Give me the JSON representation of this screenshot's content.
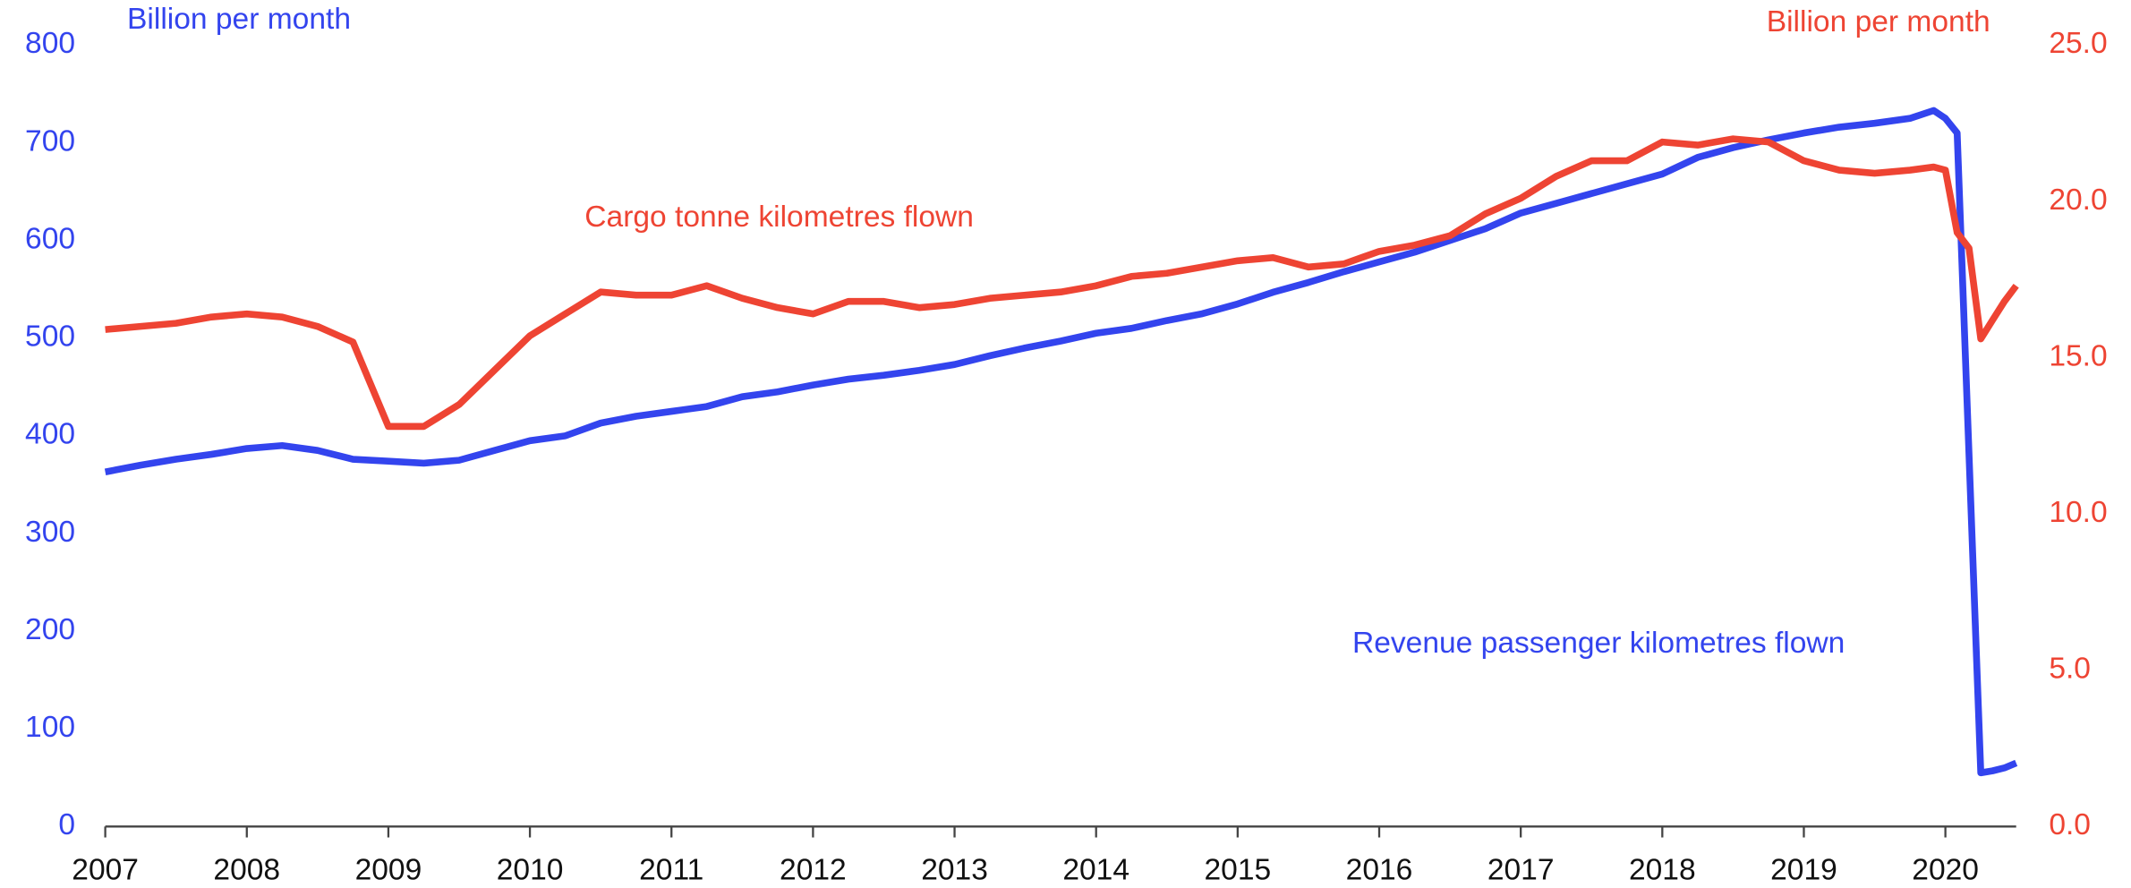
{
  "chart_data": {
    "type": "line",
    "y_axis_label": "Billion per month",
    "y2_axis_label": "Billion per month",
    "x": [
      2007,
      2007.25,
      2007.5,
      2007.75,
      2008,
      2008.25,
      2008.5,
      2008.75,
      2009,
      2009.25,
      2009.5,
      2009.75,
      2010,
      2010.25,
      2010.5,
      2010.75,
      2011,
      2011.25,
      2011.5,
      2011.75,
      2012,
      2012.25,
      2012.5,
      2012.75,
      2013,
      2013.25,
      2013.5,
      2013.75,
      2014,
      2014.25,
      2014.5,
      2014.75,
      2015,
      2015.25,
      2015.5,
      2015.75,
      2016,
      2016.25,
      2016.5,
      2016.75,
      2017,
      2017.25,
      2017.5,
      2017.75,
      2018,
      2018.25,
      2018.5,
      2018.75,
      2019,
      2019.25,
      2019.5,
      2019.75,
      2019.917,
      2020,
      2020.083,
      2020.167,
      2020.25,
      2020.333,
      2020.417,
      2020.5
    ],
    "series": [
      {
        "name": "Revenue passenger kilometres flown",
        "color": "#3344ee",
        "axis": "y",
        "values": [
          363,
          370,
          376,
          381,
          387,
          390,
          385,
          376,
          374,
          372,
          375,
          385,
          395,
          400,
          413,
          420,
          425,
          430,
          440,
          445,
          452,
          458,
          462,
          467,
          473,
          482,
          490,
          497,
          505,
          510,
          518,
          525,
          535,
          547,
          557,
          568,
          578,
          588,
          600,
          612,
          628,
          638,
          648,
          658,
          668,
          685,
          695,
          703,
          710,
          716,
          720,
          725,
          733,
          725,
          710,
          380,
          55,
          57,
          60,
          65
        ]
      },
      {
        "name": "Cargo tonne kilometres flown",
        "color": "#ee4433",
        "axis": "y2",
        "values": [
          15.9,
          16.0,
          16.1,
          16.3,
          16.4,
          16.3,
          16.0,
          15.5,
          12.8,
          12.8,
          13.5,
          14.6,
          15.7,
          16.4,
          17.1,
          17.0,
          17.0,
          17.3,
          16.9,
          16.6,
          16.4,
          16.8,
          16.8,
          16.6,
          16.7,
          16.9,
          17.0,
          17.1,
          17.3,
          17.6,
          17.7,
          17.9,
          18.1,
          18.2,
          17.9,
          18.0,
          18.4,
          18.6,
          18.9,
          19.6,
          20.1,
          20.8,
          21.3,
          21.3,
          21.9,
          21.8,
          22.0,
          21.9,
          21.3,
          21.0,
          20.9,
          21.0,
          21.1,
          21.0,
          19.0,
          18.5,
          15.6,
          16.2,
          16.8,
          17.3
        ]
      }
    ],
    "xlim": [
      2007,
      2020.5
    ],
    "xticks": [
      2007,
      2008,
      2009,
      2010,
      2011,
      2012,
      2013,
      2014,
      2015,
      2016,
      2017,
      2018,
      2019,
      2020
    ],
    "ylim": [
      0,
      800
    ],
    "yticks": [
      0,
      100,
      200,
      300,
      400,
      500,
      600,
      700,
      800
    ],
    "y2lim": [
      0,
      25
    ],
    "y2ticks": [
      {
        "value": 0,
        "label": "0.0"
      },
      {
        "value": 5,
        "label": "5.0"
      },
      {
        "value": 10,
        "label": "10.0"
      },
      {
        "value": 15,
        "label": "15.0"
      },
      {
        "value": 20,
        "label": "20.0"
      },
      {
        "value": 25,
        "label": "25.0"
      }
    ],
    "grid": false
  }
}
